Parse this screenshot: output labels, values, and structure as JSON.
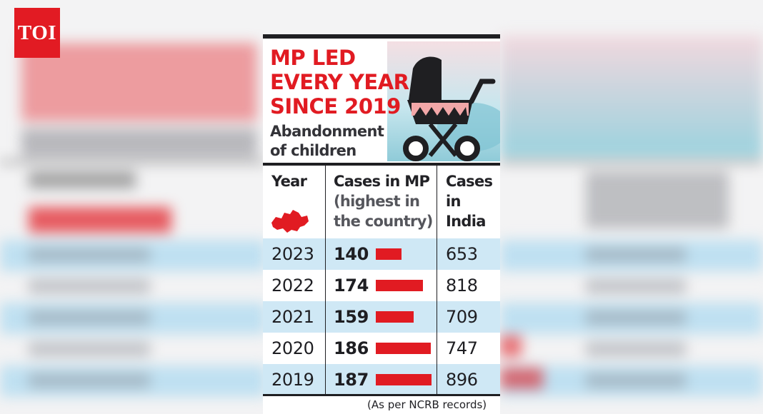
{
  "logo": {
    "text": "TOI",
    "color": "#e21b23"
  },
  "headline": {
    "lines": [
      "MP LED",
      "EVERY YEAR",
      "SINCE 2019"
    ],
    "color": "#e11b22"
  },
  "subtitle": {
    "lines": [
      "Abandonment",
      "of children"
    ]
  },
  "table": {
    "headers": {
      "year": "Year",
      "mp_main": "Cases in MP",
      "mp_note_lines": [
        "(highest in",
        "the country)"
      ],
      "india_lines": [
        "Cases",
        "in",
        "India"
      ]
    },
    "icons": {
      "state_map": "madhya-pradesh-map-icon",
      "stroller": "baby-stroller-icon"
    },
    "row_colors": {
      "blue": "#cfe8f5",
      "white": "#ffffff"
    }
  },
  "chart_data": {
    "type": "table",
    "title": "MP LED EVERY YEAR SINCE 2019",
    "subtitle": "Abandonment of children",
    "columns": [
      "Year",
      "Cases in MP (highest in the country)",
      "Cases in India"
    ],
    "rows": [
      {
        "year": "2023",
        "mp": 140,
        "india": 653
      },
      {
        "year": "2022",
        "mp": 174,
        "india": 818
      },
      {
        "year": "2021",
        "mp": 159,
        "india": 709
      },
      {
        "year": "2020",
        "mp": 186,
        "india": 747
      },
      {
        "year": "2019",
        "mp": 187,
        "india": 896
      }
    ],
    "bar_series": "Cases in MP",
    "bar_color": "#e11b22",
    "source": "(As per NCRB records)"
  },
  "footnote": "(As per NCRB records)"
}
